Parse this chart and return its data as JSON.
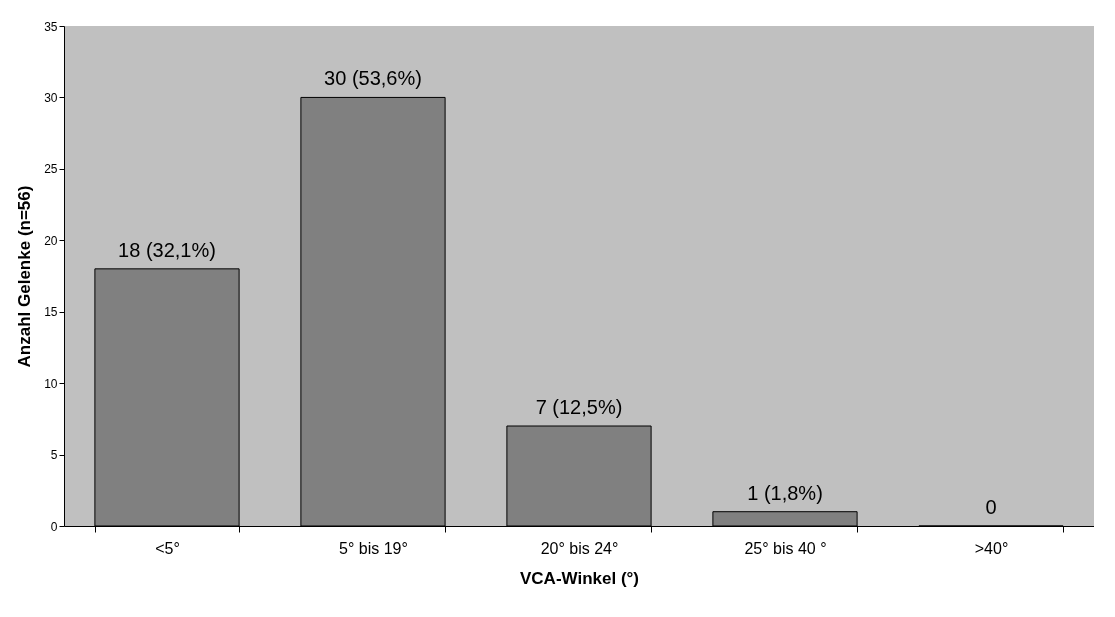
{
  "chart_data": {
    "type": "bar",
    "xlabel": "VCA-Winkel (°)",
    "ylabel": "Anzahl Gelenke (n=56)",
    "categories": [
      "<5°",
      "5° bis 19°",
      "20° bis 24°",
      "25° bis 40 °",
      ">40°"
    ],
    "values": [
      18,
      30,
      7,
      1,
      0
    ],
    "value_labels": [
      "18 (32,1%)",
      "30 (53,6%)",
      "7 (12,5%)",
      "1 (1,8%)",
      "0"
    ],
    "color": "#808080",
    "ylim": [
      0,
      35
    ],
    "yticks": [
      0,
      5,
      10,
      15,
      20,
      25,
      30,
      35
    ],
    "grid": false
  }
}
